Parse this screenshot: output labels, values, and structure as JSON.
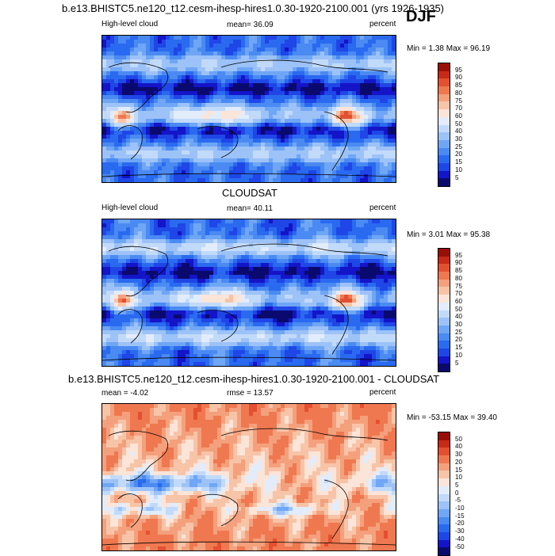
{
  "season": "DJF",
  "panels": [
    {
      "title": "b.e13.BHISTC5.ne120_t12.cesm-ihesp-hires1.0.30-1920-2100.001 (yrs 1926-1935)",
      "left_label": "High-level cloud",
      "center_label": "mean=  36.09",
      "right_label": "percent",
      "minmax": "Min =   1.38 Max =  96.19",
      "kind": "model"
    },
    {
      "title": "CLOUDSAT",
      "left_label": "High-level cloud",
      "center_label": "mean=  40.11",
      "right_label": "percent",
      "minmax": "Min =   3.01 Max =  95.38",
      "kind": "obs"
    },
    {
      "title": "b.e13.BHISTC5.ne120_t12.cesm-ihesp-hires1.0.30-1920-2100.001 - CLOUDSAT",
      "left_label": "mean = -4.02",
      "center_label": "rmse =  13.57",
      "right_label": "percent",
      "minmax": "Min = -53.15 Max =  39.40",
      "kind": "diff"
    }
  ],
  "chart_data": [
    {
      "type": "heatmap",
      "title": "b.e13.BHISTC5.ne120_t12.cesm-ihesp-hires1.0.30-1920-2100.001 (yrs 1926-1935)",
      "variable": "High-level cloud",
      "units": "percent",
      "mean": 36.09,
      "min": 1.38,
      "max": 96.19,
      "colorbar_levels": [
        5,
        10,
        15,
        20,
        25,
        30,
        40,
        50,
        60,
        70,
        75,
        80,
        85,
        90,
        95
      ],
      "colors": [
        "#0a0a6e",
        "#1414c8",
        "#1f46e6",
        "#2a6af0",
        "#4a8af2",
        "#6fa6f5",
        "#9cc2f8",
        "#c2daf9",
        "#e2ecfb",
        "#fbe4d8",
        "#f7c4a8",
        "#f4a07c",
        "#ef7850",
        "#e35030",
        "#c82a18",
        "#9a0e08"
      ]
    },
    {
      "type": "heatmap",
      "title": "CLOUDSAT",
      "variable": "High-level cloud",
      "units": "percent",
      "mean": 40.11,
      "min": 3.01,
      "max": 95.38,
      "colorbar_levels": [
        5,
        10,
        15,
        20,
        25,
        30,
        40,
        50,
        60,
        70,
        75,
        80,
        85,
        90,
        95
      ],
      "colors": [
        "#0a0a6e",
        "#1414c8",
        "#1f46e6",
        "#2a6af0",
        "#4a8af2",
        "#6fa6f5",
        "#9cc2f8",
        "#c2daf9",
        "#e2ecfb",
        "#fbe4d8",
        "#f7c4a8",
        "#f4a07c",
        "#ef7850",
        "#e35030",
        "#c82a18",
        "#9a0e08"
      ]
    },
    {
      "type": "heatmap",
      "title": "b.e13.BHISTC5.ne120_t12.cesm-ihesp-hires1.0.30-1920-2100.001 - CLOUDSAT",
      "units": "percent",
      "mean": -4.02,
      "rmse": 13.57,
      "min": -53.15,
      "max": 39.4,
      "colorbar_levels": [
        -50,
        -40,
        -30,
        -20,
        -15,
        -10,
        -5,
        0,
        5,
        10,
        15,
        20,
        30,
        40,
        50
      ],
      "colors": [
        "#0a0a6e",
        "#1414c8",
        "#1f46e6",
        "#2a6af0",
        "#4a8af2",
        "#6fa6f5",
        "#9cc2f8",
        "#c2daf9",
        "#e2ecfb",
        "#fbe4d8",
        "#f7c4a8",
        "#f4a07c",
        "#ef7850",
        "#e35030",
        "#c82a18",
        "#9a0e08"
      ]
    }
  ]
}
